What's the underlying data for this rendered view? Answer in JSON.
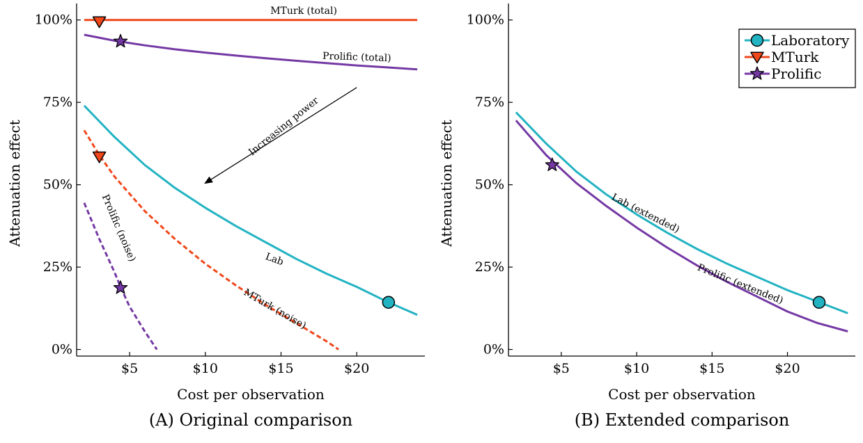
{
  "colors": {
    "lab": "#22b3c2",
    "mturk": "#f0471b",
    "prolific": "#7438a4",
    "axis": "#000000"
  },
  "chart_data": [
    {
      "type": "line",
      "caption": "(A) Original comparison",
      "xlabel": "Cost per observation",
      "ylabel": "Attenuation effect",
      "xlim": [
        1.5,
        24.5
      ],
      "ylim": [
        -2,
        105
      ],
      "x_ticks": [
        {
          "value": 5,
          "label": "$5"
        },
        {
          "value": 10,
          "label": "$10"
        },
        {
          "value": 15,
          "label": "$15"
        },
        {
          "value": 20,
          "label": "$20"
        }
      ],
      "y_ticks": [
        {
          "value": 0,
          "label": "0%"
        },
        {
          "value": 25,
          "label": "25%"
        },
        {
          "value": 50,
          "label": "50%"
        },
        {
          "value": 75,
          "label": "75%"
        },
        {
          "value": 100,
          "label": "100%"
        }
      ],
      "grid": false,
      "series": [
        {
          "name": "Lab",
          "color_key": "lab",
          "style": "solid",
          "x": [
            2,
            4,
            6,
            8,
            10,
            12,
            14,
            16,
            18,
            20,
            22,
            24
          ],
          "y": [
            74,
            64.5,
            56,
            49,
            43,
            37.5,
            32.5,
            27.5,
            23,
            19,
            14.5,
            10.5
          ]
        },
        {
          "name": "MTurk (total)",
          "color_key": "mturk",
          "style": "solid",
          "x": [
            2,
            24
          ],
          "y": [
            100,
            100
          ]
        },
        {
          "name": "Prolific (total)",
          "color_key": "prolific",
          "style": "solid",
          "x": [
            2,
            4,
            6,
            8,
            10,
            12,
            14,
            16,
            18,
            20,
            22,
            24
          ],
          "y": [
            95.5,
            93.7,
            92.3,
            91.1,
            90.1,
            89.2,
            88.4,
            87.6,
            86.9,
            86.2,
            85.6,
            85
          ]
        },
        {
          "name": "MTurk (noise)",
          "color_key": "mturk",
          "style": "dashed",
          "x": [
            2,
            3,
            4,
            6,
            8,
            10,
            12,
            14,
            16,
            18,
            18.8
          ],
          "y": [
            66.5,
            59,
            52.5,
            42,
            33.5,
            26,
            19.5,
            13.5,
            8,
            2.5,
            0
          ]
        },
        {
          "name": "Prolific (noise)",
          "color_key": "prolific",
          "style": "dashed",
          "x": [
            2,
            3,
            4,
            4.4,
            5,
            6,
            6.8
          ],
          "y": [
            44.5,
            33.5,
            23.5,
            19,
            13,
            5.5,
            0
          ]
        }
      ],
      "markers": [
        {
          "series": "Lab",
          "shape": "circle",
          "color_key": "lab",
          "x": 22.1,
          "y": 14.3
        },
        {
          "series": "MTurk",
          "shape": "triangle-down",
          "color_key": "mturk",
          "x": 3.0,
          "y": 99.5
        },
        {
          "series": "MTurk",
          "shape": "triangle-down",
          "color_key": "mturk",
          "x": 3.0,
          "y": 58.5
        },
        {
          "series": "Prolific",
          "shape": "star",
          "color_key": "prolific",
          "x": 4.4,
          "y": 93.5
        },
        {
          "series": "Prolific",
          "shape": "star",
          "color_key": "prolific",
          "x": 4.4,
          "y": 18.7
        }
      ],
      "annotations": [
        {
          "text": "MTurk (total)",
          "x": 16.5,
          "y": 101.8,
          "angle": 0
        },
        {
          "text": "Prolific (total)",
          "x": 20,
          "y": 87.8,
          "angle": 2
        },
        {
          "text": "Lab",
          "x": 14.5,
          "y": 26.5,
          "angle": 20
        },
        {
          "text": "MTurk (noise)",
          "x": 14.5,
          "y": 11.5,
          "angle": 30
        },
        {
          "text": "Prolific (noise)",
          "x": 4.1,
          "y": 36.5,
          "angle": 67
        },
        {
          "text": "Increasing power",
          "x": 15.3,
          "y": 67,
          "angle": -39
        }
      ],
      "arrow": {
        "from": [
          20.0,
          79.5
        ],
        "to": [
          10.0,
          50.5
        ]
      }
    },
    {
      "type": "line",
      "caption": "(B) Extended comparison",
      "xlabel": "Cost per observation",
      "ylabel": "Attenuation effect",
      "xlim": [
        1.5,
        24.5
      ],
      "ylim": [
        -2,
        105
      ],
      "x_ticks": [
        {
          "value": 5,
          "label": "$5"
        },
        {
          "value": 10,
          "label": "$10"
        },
        {
          "value": 15,
          "label": "$15"
        },
        {
          "value": 20,
          "label": "$20"
        }
      ],
      "y_ticks": [
        {
          "value": 0,
          "label": "0%"
        },
        {
          "value": 25,
          "label": "25%"
        },
        {
          "value": 50,
          "label": "50%"
        },
        {
          "value": 75,
          "label": "75%"
        },
        {
          "value": 100,
          "label": "100%"
        }
      ],
      "grid": false,
      "legend": {
        "position": "top-right",
        "entries": [
          {
            "label": "Laboratory",
            "color_key": "lab",
            "shape": "circle"
          },
          {
            "label": "MTurk",
            "color_key": "mturk",
            "shape": "triangle-down"
          },
          {
            "label": "Prolific",
            "color_key": "prolific",
            "shape": "star"
          }
        ]
      },
      "series": [
        {
          "name": "Lab (extended)",
          "color_key": "lab",
          "style": "solid",
          "x": [
            2,
            4,
            6,
            8,
            10,
            12,
            14,
            16,
            18,
            20,
            22,
            24
          ],
          "y": [
            72,
            62.5,
            54,
            47,
            41,
            35.5,
            30.5,
            26,
            22,
            18,
            14.5,
            11
          ]
        },
        {
          "name": "Prolific (extended)",
          "color_key": "prolific",
          "style": "solid",
          "x": [
            2,
            4,
            6,
            8,
            10,
            12,
            14,
            16,
            18,
            20,
            22,
            24
          ],
          "y": [
            69.5,
            59,
            50.5,
            43.5,
            37,
            31,
            25.5,
            20.5,
            16,
            11.5,
            8,
            5.5
          ]
        }
      ],
      "markers": [
        {
          "series": "Lab",
          "shape": "circle",
          "color_key": "lab",
          "x": 22.1,
          "y": 14.3
        },
        {
          "series": "Prolific",
          "shape": "star",
          "color_key": "prolific",
          "x": 4.4,
          "y": 56
        }
      ],
      "annotations": [
        {
          "text": "Lab (extended)",
          "x": 10.5,
          "y": 40.5,
          "angle": 27
        },
        {
          "text": "Prolific (extended)",
          "x": 16.8,
          "y": 19,
          "angle": 22
        }
      ]
    }
  ]
}
